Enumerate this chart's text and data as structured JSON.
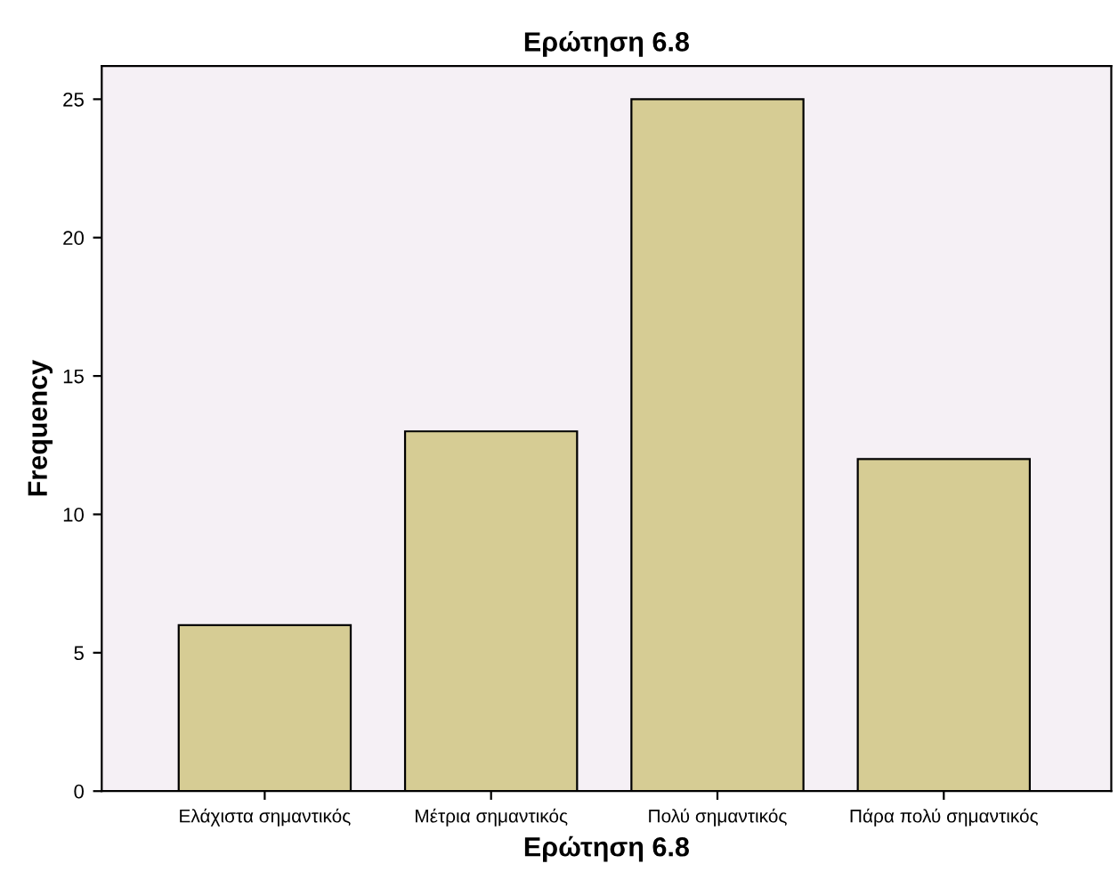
{
  "chart_data": {
    "type": "bar",
    "title": "Ερώτηση 6.8",
    "xlabel": "Ερώτηση 6.8",
    "ylabel": "Frequency",
    "categories": [
      "Ελάχιστα σημαντικός",
      "Μέτρια σημαντικός",
      "Πολύ σημαντικός",
      "Πάρα πολύ σημαντικός"
    ],
    "values": [
      6,
      13,
      25,
      12
    ],
    "color": "#d6cc94",
    "ylim": [
      0,
      26.2
    ],
    "yticks": [
      0,
      5,
      10,
      15,
      20,
      25
    ],
    "grid": false,
    "legend": false
  }
}
